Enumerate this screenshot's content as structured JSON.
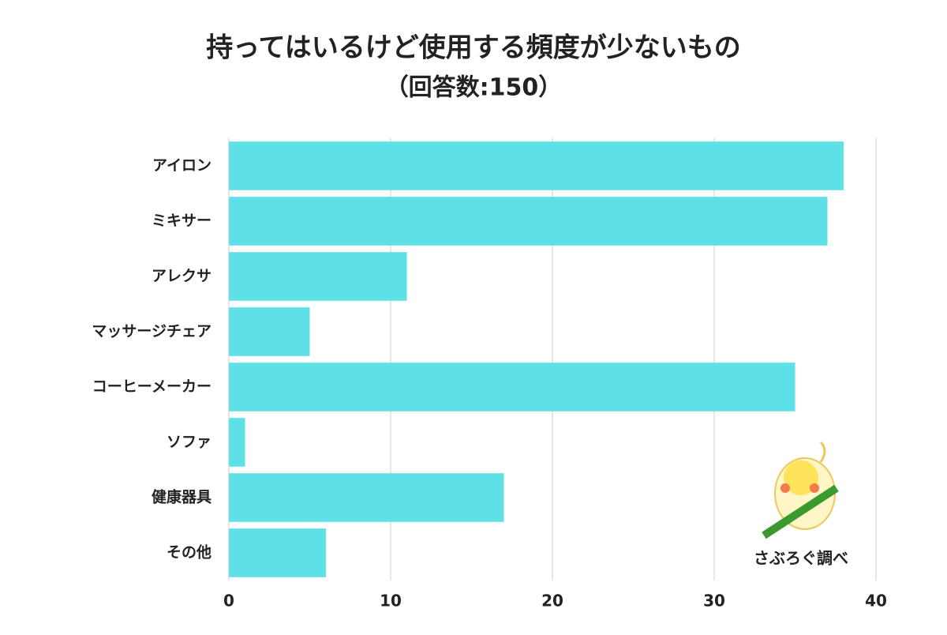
{
  "chart_data": {
    "type": "bar",
    "orientation": "horizontal",
    "title": "持ってはいるけど使用する頻度が少ないもの",
    "subtitle": "（回答数:150）",
    "categories": [
      "アイロン",
      "ミキサー",
      "アレクサ",
      "マッサージチェア",
      "コーヒーメーカー",
      "ソファ",
      "健康器具",
      "その他"
    ],
    "values": [
      38,
      37,
      11,
      5,
      35,
      1,
      17,
      6
    ],
    "color": "#5ee1e6",
    "xlim": [
      0,
      40
    ],
    "xticks": [
      0,
      10,
      20,
      30,
      40
    ],
    "grid": true,
    "watermark": "さぶろぐ調べ"
  }
}
